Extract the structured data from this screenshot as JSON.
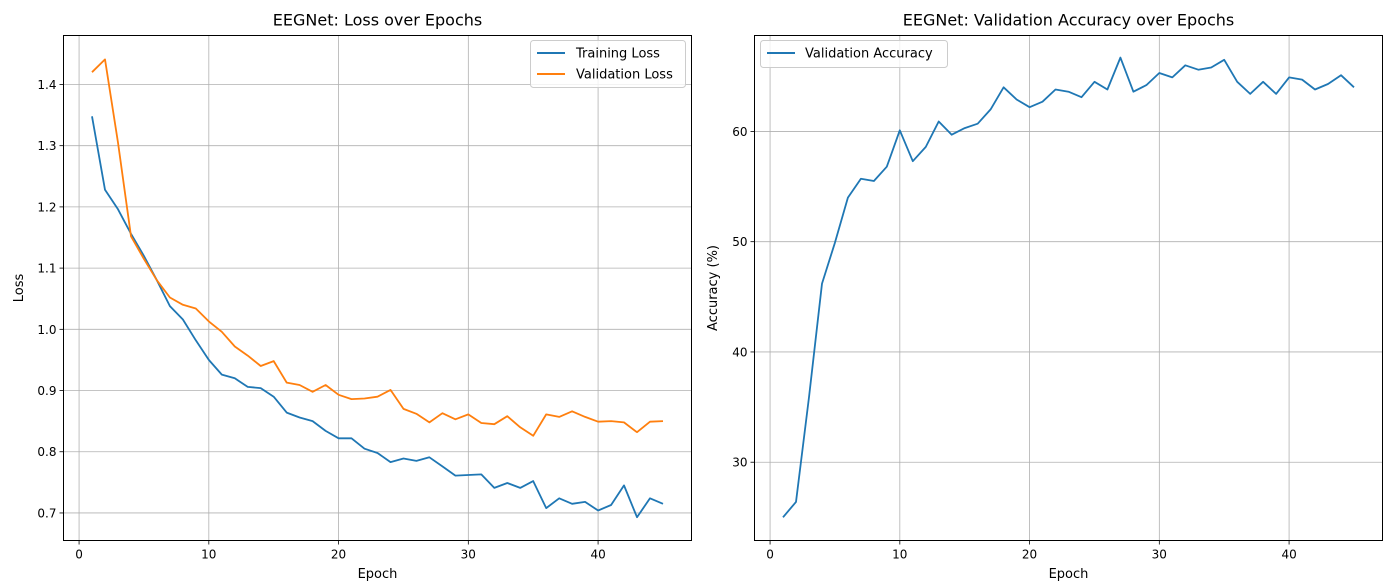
{
  "chart_data": [
    {
      "type": "line",
      "title": "EEGNet: Loss over Epochs",
      "xlabel": "Epoch",
      "ylabel": "Loss",
      "xlim": [
        -1.2,
        47.2
      ],
      "ylim": [
        0.655,
        1.48
      ],
      "xticks": [
        0,
        10,
        20,
        30,
        40
      ],
      "yticks": [
        0.7,
        0.8,
        0.9,
        1.0,
        1.1,
        1.2,
        1.3,
        1.4
      ],
      "ytick_format": 1,
      "grid": true,
      "legend_position": "upper right",
      "x": [
        1,
        2,
        3,
        4,
        5,
        6,
        7,
        8,
        9,
        10,
        11,
        12,
        13,
        14,
        15,
        16,
        17,
        18,
        19,
        20,
        21,
        22,
        23,
        24,
        25,
        26,
        27,
        28,
        29,
        30,
        31,
        32,
        33,
        34,
        35,
        36,
        37,
        38,
        39,
        40,
        41,
        42,
        43,
        44,
        45
      ],
      "series": [
        {
          "name": "Training Loss",
          "color": "#1f77b4",
          "values": [
            1.348,
            1.228,
            1.196,
            1.156,
            1.12,
            1.08,
            1.038,
            1.016,
            0.982,
            0.95,
            0.926,
            0.92,
            0.906,
            0.904,
            0.89,
            0.864,
            0.856,
            0.85,
            0.834,
            0.822,
            0.822,
            0.805,
            0.798,
            0.783,
            0.789,
            0.785,
            0.791,
            0.776,
            0.761,
            0.762,
            0.763,
            0.741,
            0.749,
            0.741,
            0.752,
            0.708,
            0.724,
            0.715,
            0.718,
            0.704,
            0.713,
            0.745,
            0.693,
            0.724,
            0.715
          ]
        },
        {
          "name": "Validation Loss",
          "color": "#ff7f0e",
          "values": [
            1.42,
            1.441,
            1.305,
            1.152,
            1.115,
            1.08,
            1.052,
            1.04,
            1.034,
            1.013,
            0.996,
            0.972,
            0.957,
            0.94,
            0.948,
            0.913,
            0.909,
            0.898,
            0.909,
            0.893,
            0.886,
            0.887,
            0.89,
            0.901,
            0.87,
            0.862,
            0.848,
            0.863,
            0.853,
            0.861,
            0.847,
            0.845,
            0.858,
            0.84,
            0.826,
            0.861,
            0.857,
            0.866,
            0.857,
            0.849,
            0.85,
            0.848,
            0.832,
            0.849,
            0.85
          ]
        }
      ]
    },
    {
      "type": "line",
      "title": "EEGNet: Validation Accuracy over Epochs",
      "xlabel": "Epoch",
      "ylabel": "Accuracy (%)",
      "xlim": [
        -1.2,
        47.2
      ],
      "ylim": [
        22.9,
        68.7
      ],
      "xticks": [
        0,
        10,
        20,
        30,
        40
      ],
      "yticks": [
        30,
        40,
        50,
        60
      ],
      "ytick_format": 0,
      "grid": true,
      "legend_position": "upper left",
      "x": [
        1,
        2,
        3,
        4,
        5,
        6,
        7,
        8,
        9,
        10,
        11,
        12,
        13,
        14,
        15,
        16,
        17,
        18,
        19,
        20,
        21,
        22,
        23,
        24,
        25,
        26,
        27,
        28,
        29,
        30,
        31,
        32,
        33,
        34,
        35,
        36,
        37,
        38,
        39,
        40,
        41,
        42,
        43,
        44,
        45
      ],
      "series": [
        {
          "name": "Validation Accuracy",
          "color": "#1f77b4",
          "values": [
            25.0,
            26.4,
            35.9,
            46.2,
            49.9,
            54.0,
            55.7,
            55.5,
            56.8,
            60.1,
            57.3,
            58.6,
            60.9,
            59.7,
            60.3,
            60.7,
            62.0,
            64.0,
            62.9,
            62.2,
            62.7,
            63.8,
            63.6,
            63.1,
            64.5,
            63.8,
            66.7,
            63.6,
            64.2,
            65.3,
            64.9,
            66.0,
            65.6,
            65.8,
            66.5,
            64.5,
            63.4,
            64.5,
            63.4,
            64.9,
            64.7,
            63.8,
            64.3,
            65.1,
            64.0
          ]
        }
      ]
    }
  ]
}
